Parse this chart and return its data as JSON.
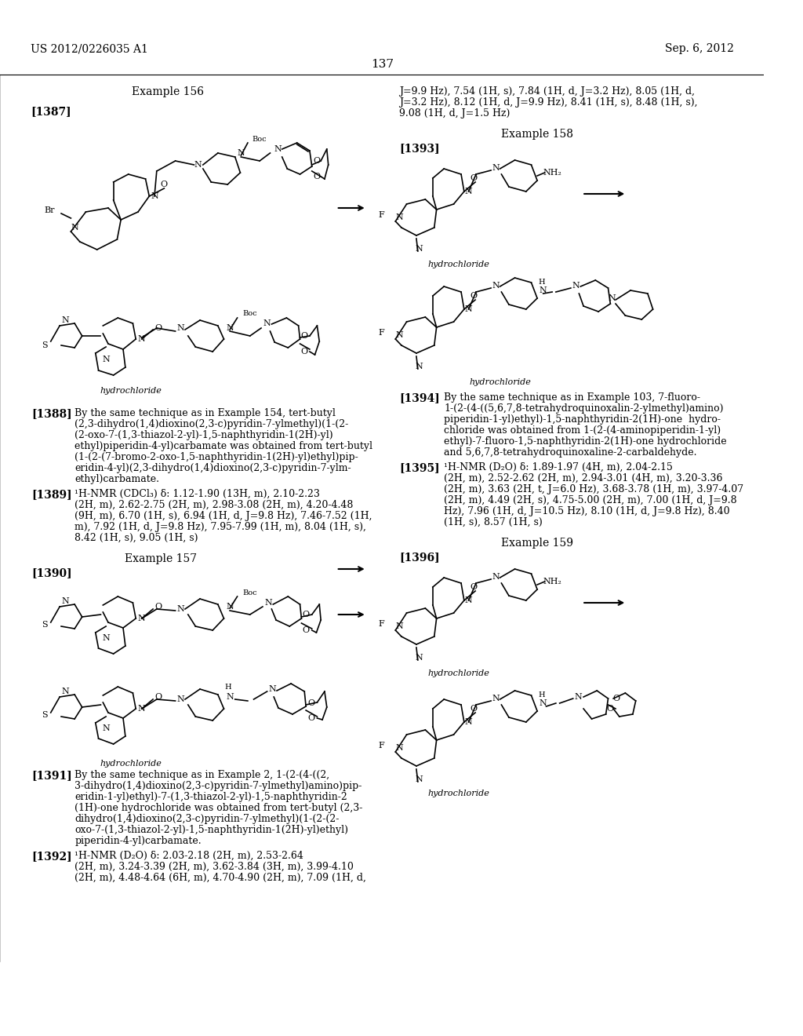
{
  "background_color": "#ffffff",
  "page_number": "137",
  "header_left": "US 2012/0226035 A1",
  "header_right": "Sep. 6, 2012",
  "image_path": null,
  "left_column": {
    "example156_title": "Example 156",
    "label1387": "[1387]",
    "label1388": "[1388]",
    "text1388": "By the same technique as in Example 154, tert-butyl (2,3-dihydro(1,4)dioxino(2,3-c)pyridin-7-ylmethyl)(1-(2-(2-oxo-7-(1,3-thiazol-2-yl)-1,5-naphthyridin-1(2H)-yl) ethyl)piperidin-4-yl)carbamate was obtained from tert-butyl (1-(2-(7-bromo-2-oxo-1,5-naphthyridin-1(2H)-yl)ethyl)pip-eridin-4-yl)(2,3-dihydro(1,4)dioxino(2,3-c)pyridin-7-ylmethyl)carbamate.",
    "label1389": "[1389]",
    "text1389": "¹H-NMR (CDCl₃) δ: 1.12-1.90 (13H, m), 2.10-2.23 (2H, m), 2.62-2.75 (2H, m), 2.98-3.08 (2H, m), 4.20-4.48 (9H, m), 6.70 (1H, s), 6.94 (1H, d, J=9.8 Hz), 7.46-7.52 (1H, m), 7.92 (1H, d, J=9.8 Hz), 7.95-7.99 (1H, m), 8.04 (1H, s), 8.42 (1H, s), 9.05 (1H, s)",
    "example157_title": "Example 157",
    "label1390": "[1390]",
    "label1391": "[1391]",
    "text1391": "By the same technique as in Example 2, 1-(2-(4-((2,3-dihydro(1,4)dioxino(2,3-c)pyridin-7-ylmethyl)amino)pip-eridin-1-yl)ethyl)-7-(1,3-thiazol-2-yl)-1,5-naphthyridin-2(1H)-one hydrochloride was obtained from tert-butyl (2,3-dihydro(1,4)dioxino(2,3-c)pyridin-7-ylmethyl)(1-(2-(2-oxo-7-(1,3-thiazol-2-yl)-1,5-naphthyridin-1(2H)-yl)ethyl)piperidin-4-yl)carbamate.",
    "label1392": "[1392]",
    "text1392": "¹H-NMR (D₂O) δ: 2.03-2.18 (2H, m), 2.53-2.64 (2H, m), 3.24-3.39 (2H, m), 3.62-3.84 (3H, m), 3.99-4.10 (2H, m), 4.48-4.64 (6H, m), 4.70-4.90 (2H, m), 7.09 (1H, d,"
  },
  "right_column": {
    "text_top": "J=9.9 Hz), 7.54 (1H, s), 7.84 (1H, d, J=3.2 Hz), 8.05 (1H, d, J=3.2 Hz), 8.12 (1H, d, J=9.9 Hz), 8.41 (1H, s), 8.48 (1H, s), 9.08 (1H, d, J=1.5 Hz)",
    "example158_title": "Example 158",
    "label1393": "[1393]",
    "label1394": "[1394]",
    "text1394": "By the same technique as in Example 103, 7-fluoro-1-(2-(4-((5,6,7,8-tetrahydroquinoxalin-2-ylmethyl)amino)piperidin-1-yl)ethyl)-1,5-naphthyridin-2(1H)-one hydrochloride was obtained from 1-(2-(4-aminopiperidin-1-yl)ethyl)-7-fluoro-1,5-naphthyridin-2(1H)-one hydrochloride and 5,6,7,8-tetrahydroquinoxaline-2-carbaldehyde.",
    "label1395": "[1395]",
    "text1395": "¹H-NMR (D₂O) δ: 1.89-1.97 (4H, m), 2.04-2.15 (2H, m), 2.52-2.62 (2H, m), 2.94-3.01 (4H, m), 3.20-3.36 (2H, m), 3.63 (2H, t, J=6.0 Hz), 3.68-3.78 (1H, m), 3.97-4.07 (2H, m), 4.49 (2H, s), 4.75-5.00 (2H, m), 7.00 (1H, d, J=9.8 Hz), 7.96 (1H, d, J=10.5 Hz), 8.10 (1H, d, J=9.8 Hz), 8.40 (1H, s), 8.57 (1H, s)",
    "example159_title": "Example 159",
    "label1396": "[1396]"
  }
}
